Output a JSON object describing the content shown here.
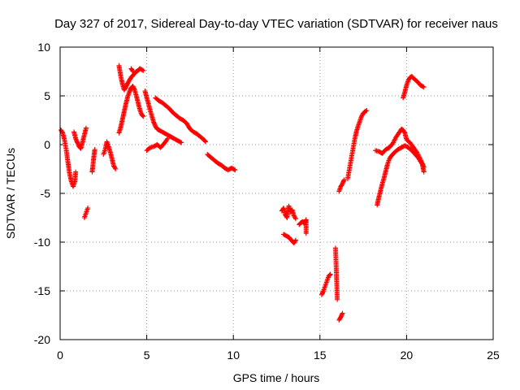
{
  "chart_data": {
    "type": "scatter",
    "title": "Day 327 of 2017, Sidereal Day-to-day VTEC variation (SDTVAR) for receiver naus",
    "xlabel": "GPS time / hours",
    "ylabel": "SDTVAR / TECUs",
    "xlim": [
      0,
      25
    ],
    "ylim": [
      -20,
      10
    ],
    "xticks": [
      0,
      5,
      10,
      15,
      20,
      25
    ],
    "yticks": [
      -20,
      -15,
      -10,
      -5,
      0,
      5,
      10
    ],
    "xtick_labels": [
      "0",
      "5",
      "10",
      "15",
      "20",
      "25"
    ],
    "ytick_labels": [
      "-20",
      "-15",
      "-10",
      "-5",
      "0",
      "5",
      "10"
    ],
    "grid": true,
    "marker": "+",
    "color": "#ff0000",
    "segments": [
      [
        [
          0.05,
          1.5
        ],
        [
          0.15,
          1.2
        ],
        [
          0.25,
          0.5
        ],
        [
          0.35,
          -0.5
        ],
        [
          0.45,
          -1.8
        ],
        [
          0.55,
          -3.0
        ],
        [
          0.65,
          -3.8
        ],
        [
          0.75,
          -4.3
        ],
        [
          0.85,
          -3.8
        ],
        [
          0.9,
          -2.8
        ]
      ],
      [
        [
          0.8,
          1.3
        ],
        [
          0.9,
          0.6
        ],
        [
          1.0,
          0.2
        ],
        [
          1.1,
          -0.2
        ],
        [
          1.2,
          -0.4
        ],
        [
          1.3,
          0.3
        ],
        [
          1.4,
          1.0
        ],
        [
          1.5,
          1.7
        ]
      ],
      [
        [
          1.4,
          -7.5
        ],
        [
          1.5,
          -7.0
        ],
        [
          1.6,
          -6.5
        ]
      ],
      [
        [
          1.85,
          -2.8
        ],
        [
          1.9,
          -2.0
        ],
        [
          1.95,
          -1.2
        ],
        [
          2.0,
          -0.5
        ]
      ],
      [
        [
          2.5,
          -1.0
        ],
        [
          2.6,
          -0.5
        ],
        [
          2.7,
          0.3
        ],
        [
          2.8,
          -0.2
        ],
        [
          2.9,
          -0.8
        ],
        [
          3.0,
          -1.5
        ],
        [
          3.1,
          -2.2
        ],
        [
          3.2,
          -2.5
        ]
      ],
      [
        [
          3.4,
          8.1
        ],
        [
          3.5,
          7.0
        ],
        [
          3.6,
          6.2
        ],
        [
          3.7,
          5.6
        ],
        [
          3.8,
          5.9
        ],
        [
          3.9,
          6.3
        ],
        [
          4.0,
          6.6
        ],
        [
          4.1,
          6.9
        ],
        [
          4.2,
          7.1
        ],
        [
          4.3,
          7.3
        ],
        [
          4.4,
          7.5
        ],
        [
          4.5,
          7.6
        ],
        [
          4.6,
          7.8
        ],
        [
          4.7,
          7.7
        ],
        [
          4.8,
          7.6
        ]
      ],
      [
        [
          3.4,
          1.2
        ],
        [
          3.5,
          1.8
        ],
        [
          3.6,
          2.6
        ],
        [
          3.7,
          3.4
        ],
        [
          3.8,
          4.2
        ],
        [
          3.9,
          4.9
        ],
        [
          4.0,
          5.4
        ],
        [
          4.1,
          5.8
        ],
        [
          4.2,
          6.0
        ],
        [
          4.3,
          5.6
        ],
        [
          4.4,
          5.0
        ],
        [
          4.5,
          4.3
        ],
        [
          4.6,
          3.6
        ],
        [
          4.7,
          3.1
        ],
        [
          4.8,
          2.9
        ]
      ],
      [
        [
          4.1,
          7.8
        ],
        [
          4.2,
          7.5
        ]
      ],
      [
        [
          5.0,
          -0.6
        ],
        [
          5.2,
          -0.3
        ],
        [
          5.4,
          -0.2
        ],
        [
          5.6,
          0.0
        ],
        [
          5.8,
          -0.3
        ],
        [
          6.0,
          0.1
        ],
        [
          6.2,
          0.6
        ]
      ],
      [
        [
          4.9,
          5.5
        ],
        [
          5.0,
          4.8
        ],
        [
          5.1,
          4.2
        ],
        [
          5.2,
          3.5
        ],
        [
          5.3,
          2.9
        ],
        [
          5.4,
          2.3
        ],
        [
          5.5,
          1.9
        ],
        [
          5.6,
          1.6
        ],
        [
          5.8,
          1.4
        ],
        [
          6.0,
          1.2
        ],
        [
          6.2,
          1.0
        ],
        [
          6.4,
          0.8
        ],
        [
          6.6,
          0.6
        ],
        [
          6.8,
          0.4
        ],
        [
          7.0,
          0.2
        ]
      ],
      [
        [
          5.5,
          4.8
        ],
        [
          5.7,
          4.5
        ],
        [
          5.9,
          4.3
        ],
        [
          6.1,
          4.0
        ],
        [
          6.3,
          3.7
        ],
        [
          6.5,
          3.3
        ],
        [
          6.7,
          3.0
        ],
        [
          6.9,
          2.7
        ],
        [
          7.1,
          2.5
        ],
        [
          7.3,
          2.2
        ],
        [
          7.5,
          1.6
        ],
        [
          7.7,
          1.3
        ],
        [
          7.9,
          1.1
        ],
        [
          8.1,
          0.8
        ],
        [
          8.3,
          0.5
        ],
        [
          8.4,
          0.3
        ]
      ],
      [
        [
          8.5,
          -1.0
        ],
        [
          8.7,
          -1.3
        ],
        [
          8.9,
          -1.6
        ],
        [
          9.1,
          -1.9
        ],
        [
          9.3,
          -2.1
        ],
        [
          9.5,
          -2.4
        ],
        [
          9.7,
          -2.6
        ],
        [
          9.9,
          -2.4
        ],
        [
          10.1,
          -2.6
        ]
      ],
      [
        [
          12.8,
          -6.8
        ],
        [
          12.9,
          -6.5
        ],
        [
          13.0,
          -7.2
        ],
        [
          13.1,
          -7.5
        ],
        [
          13.2,
          -6.3
        ],
        [
          13.3,
          -6.9
        ],
        [
          13.4,
          -6.7
        ],
        [
          13.5,
          -7.3
        ],
        [
          13.6,
          -7.6
        ]
      ],
      [
        [
          12.9,
          -9.2
        ],
        [
          13.0,
          -9.3
        ],
        [
          13.1,
          -9.4
        ],
        [
          13.2,
          -9.5
        ],
        [
          13.3,
          -9.7
        ],
        [
          13.4,
          -9.9
        ],
        [
          13.5,
          -10.1
        ],
        [
          13.6,
          -9.8
        ]
      ],
      [
        [
          13.8,
          -8.2
        ],
        [
          13.9,
          -8.0
        ],
        [
          14.0,
          -7.9
        ],
        [
          14.1,
          -8.1
        ],
        [
          14.2,
          -7.7
        ],
        [
          14.2,
          -9.1
        ]
      ],
      [
        [
          15.1,
          -15.4
        ],
        [
          15.2,
          -15.0
        ],
        [
          15.3,
          -14.5
        ],
        [
          15.4,
          -14.0
        ],
        [
          15.5,
          -13.5
        ],
        [
          15.6,
          -13.3
        ]
      ],
      [
        [
          15.9,
          -10.6
        ],
        [
          16.0,
          -15.9
        ]
      ],
      [
        [
          16.1,
          -18.0
        ],
        [
          16.2,
          -17.7
        ],
        [
          16.3,
          -17.3
        ]
      ],
      [
        [
          16.1,
          -4.8
        ],
        [
          16.2,
          -4.3
        ],
        [
          16.3,
          -4.0
        ],
        [
          16.4,
          -3.6
        ]
      ],
      [
        [
          16.6,
          -3.5
        ],
        [
          16.7,
          -2.5
        ],
        [
          16.8,
          -1.5
        ],
        [
          16.9,
          -0.5
        ],
        [
          17.0,
          0.5
        ],
        [
          17.1,
          1.3
        ],
        [
          17.2,
          1.9
        ],
        [
          17.3,
          2.4
        ],
        [
          17.4,
          2.9
        ],
        [
          17.5,
          3.2
        ],
        [
          17.6,
          3.4
        ],
        [
          17.7,
          3.5
        ]
      ],
      [
        [
          18.2,
          -0.6
        ],
        [
          18.4,
          -0.7
        ],
        [
          18.6,
          -0.9
        ],
        [
          18.8,
          -0.5
        ],
        [
          19.0,
          -0.3
        ],
        [
          19.2,
          0.1
        ],
        [
          19.4,
          0.8
        ],
        [
          19.6,
          1.3
        ],
        [
          19.7,
          1.6
        ],
        [
          19.8,
          1.5
        ],
        [
          19.9,
          1.2
        ],
        [
          20.0,
          0.5
        ],
        [
          20.2,
          0.2
        ],
        [
          20.4,
          -0.3
        ],
        [
          20.6,
          -0.8
        ],
        [
          20.8,
          -1.5
        ],
        [
          21.0,
          -2.3
        ]
      ],
      [
        [
          18.3,
          -6.2
        ],
        [
          18.4,
          -5.4
        ],
        [
          18.5,
          -4.7
        ],
        [
          18.6,
          -4.0
        ],
        [
          18.7,
          -3.4
        ],
        [
          18.8,
          -2.7
        ],
        [
          18.9,
          -2.0
        ],
        [
          19.0,
          -1.5
        ],
        [
          19.1,
          -1.2
        ],
        [
          19.3,
          -0.8
        ],
        [
          19.5,
          -0.5
        ],
        [
          19.7,
          -0.3
        ],
        [
          19.9,
          -0.1
        ],
        [
          20.1,
          -0.3
        ],
        [
          20.3,
          -0.6
        ],
        [
          20.5,
          -1.0
        ],
        [
          20.7,
          -1.4
        ],
        [
          20.9,
          -2.0
        ],
        [
          21.0,
          -2.8
        ]
      ],
      [
        [
          19.8,
          4.8
        ],
        [
          19.9,
          5.4
        ],
        [
          20.0,
          6.1
        ],
        [
          20.1,
          6.6
        ],
        [
          20.2,
          6.9
        ],
        [
          20.3,
          7.0
        ],
        [
          20.4,
          6.8
        ],
        [
          20.6,
          6.5
        ],
        [
          20.8,
          6.1
        ],
        [
          21.0,
          5.9
        ]
      ]
    ]
  }
}
